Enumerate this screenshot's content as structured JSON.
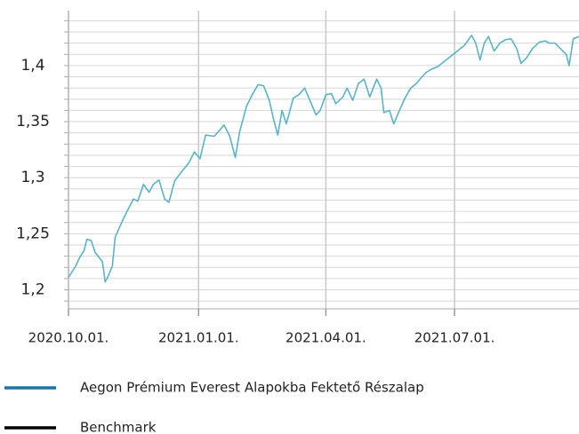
{
  "chart_data": {
    "type": "line",
    "x": [
      "2020-10-01",
      "2020-10-06",
      "2020-10-09",
      "2020-10-12",
      "2020-10-14",
      "2020-10-17",
      "2020-10-20",
      "2020-10-25",
      "2020-10-27",
      "2020-10-29",
      "2020-11-01",
      "2020-11-03",
      "2020-11-08",
      "2020-11-11",
      "2020-11-16",
      "2020-11-19",
      "2020-11-23",
      "2020-11-27",
      "2020-11-30",
      "2020-12-04",
      "2020-12-08",
      "2020-12-11",
      "2020-12-15",
      "2020-12-21",
      "2020-12-25",
      "2020-12-29",
      "2021-01-02",
      "2021-01-06",
      "2021-01-12",
      "2021-01-15",
      "2021-01-19",
      "2021-01-23",
      "2021-01-27",
      "2021-01-30",
      "2021-02-04",
      "2021-02-08",
      "2021-02-12",
      "2021-02-16",
      "2021-02-20",
      "2021-02-23",
      "2021-02-26",
      "2021-03-01",
      "2021-03-04",
      "2021-03-09",
      "2021-03-13",
      "2021-03-17",
      "2021-03-20",
      "2021-03-25",
      "2021-03-28",
      "2021-04-01",
      "2021-04-05",
      "2021-04-08",
      "2021-04-13",
      "2021-04-16",
      "2021-04-20",
      "2021-04-24",
      "2021-04-28",
      "2021-05-02",
      "2021-05-07",
      "2021-05-10",
      "2021-05-12",
      "2021-05-16",
      "2021-05-19",
      "2021-05-23",
      "2021-05-27",
      "2021-05-31",
      "2021-06-04",
      "2021-06-08",
      "2021-06-11",
      "2021-06-15",
      "2021-06-19",
      "2021-06-23",
      "2021-06-27",
      "2021-07-01",
      "2021-07-05",
      "2021-07-08",
      "2021-07-13",
      "2021-07-16",
      "2021-07-19",
      "2021-07-22",
      "2021-07-25",
      "2021-07-29",
      "2021-08-02",
      "2021-08-06",
      "2021-08-10",
      "2021-08-14",
      "2021-08-17",
      "2021-08-21",
      "2021-08-25",
      "2021-08-30",
      "2021-09-03",
      "2021-09-06",
      "2021-09-10",
      "2021-09-14",
      "2021-09-18",
      "2021-09-20",
      "2021-09-23",
      "2021-09-27"
    ],
    "series": [
      {
        "name": "Aegon Prémium Everest Alapokba Fektető Részalap",
        "color": "#5ab3c7",
        "legend_color": "#1f72a3",
        "values": [
          1.211,
          1.221,
          1.229,
          1.235,
          1.245,
          1.244,
          1.233,
          1.225,
          1.207,
          1.212,
          1.221,
          1.247,
          1.261,
          1.269,
          1.281,
          1.279,
          1.294,
          1.287,
          1.294,
          1.298,
          1.281,
          1.278,
          1.297,
          1.307,
          1.313,
          1.323,
          1.317,
          1.338,
          1.337,
          1.341,
          1.347,
          1.337,
          1.318,
          1.341,
          1.364,
          1.374,
          1.383,
          1.382,
          1.369,
          1.352,
          1.338,
          1.36,
          1.348,
          1.371,
          1.374,
          1.38,
          1.371,
          1.356,
          1.36,
          1.374,
          1.375,
          1.366,
          1.372,
          1.38,
          1.369,
          1.384,
          1.388,
          1.372,
          1.388,
          1.38,
          1.358,
          1.36,
          1.348,
          1.36,
          1.371,
          1.38,
          1.384,
          1.39,
          1.394,
          1.397,
          1.399,
          1.403,
          1.407,
          1.411,
          1.415,
          1.418,
          1.427,
          1.42,
          1.405,
          1.42,
          1.426,
          1.413,
          1.42,
          1.423,
          1.424,
          1.415,
          1.402,
          1.407,
          1.415,
          1.421,
          1.422,
          1.42,
          1.42,
          1.415,
          1.41,
          1.4,
          1.424,
          1.426
        ]
      },
      {
        "name": "Benchmark",
        "color": "#000000",
        "legend_color": "#000000",
        "values": [
          null,
          null,
          null,
          null,
          null,
          null,
          null,
          null,
          null,
          null,
          null,
          null,
          null,
          null,
          null,
          null,
          null,
          null,
          null,
          null,
          null,
          null,
          null,
          null,
          null,
          null,
          null,
          null,
          null,
          null,
          null,
          null,
          null,
          null,
          null,
          null,
          null,
          null,
          null,
          null,
          null,
          null,
          null,
          null,
          null,
          null,
          null,
          null,
          null,
          null,
          null,
          null,
          null,
          null,
          null,
          null,
          null,
          null,
          null,
          null,
          null,
          null,
          null,
          null,
          null,
          null,
          null,
          null,
          null,
          null,
          null,
          null,
          null,
          null,
          null,
          null,
          null,
          null,
          null,
          null,
          null,
          null,
          null,
          null,
          null,
          null,
          null,
          null,
          null,
          null,
          null,
          null,
          null,
          null,
          null,
          null,
          null,
          null
        ]
      }
    ],
    "xlim": [
      "2020-10-01",
      "2021-09-27"
    ],
    "xticks": [
      {
        "value": "2020-10-01",
        "label": "2020.10.01."
      },
      {
        "value": "2021-01-01",
        "label": "2021.01.01."
      },
      {
        "value": "2021-04-01",
        "label": "2021.04.01."
      },
      {
        "value": "2021-07-01",
        "label": "2021.07.01."
      }
    ],
    "ylim": [
      1.183,
      1.449
    ],
    "yticks": [
      {
        "value": 1.2,
        "label": "1,2"
      },
      {
        "value": 1.25,
        "label": "1,25"
      },
      {
        "value": 1.3,
        "label": "1,3"
      },
      {
        "value": 1.35,
        "label": "1,35"
      },
      {
        "value": 1.4,
        "label": "1,4"
      }
    ],
    "minor_yticks": [
      1.19,
      1.2,
      1.21,
      1.22,
      1.23,
      1.24,
      1.25,
      1.26,
      1.27,
      1.28,
      1.29,
      1.3,
      1.31,
      1.32,
      1.33,
      1.34,
      1.35,
      1.36,
      1.37,
      1.38,
      1.39,
      1.4,
      1.41,
      1.42,
      1.43,
      1.44
    ],
    "grid": true
  }
}
